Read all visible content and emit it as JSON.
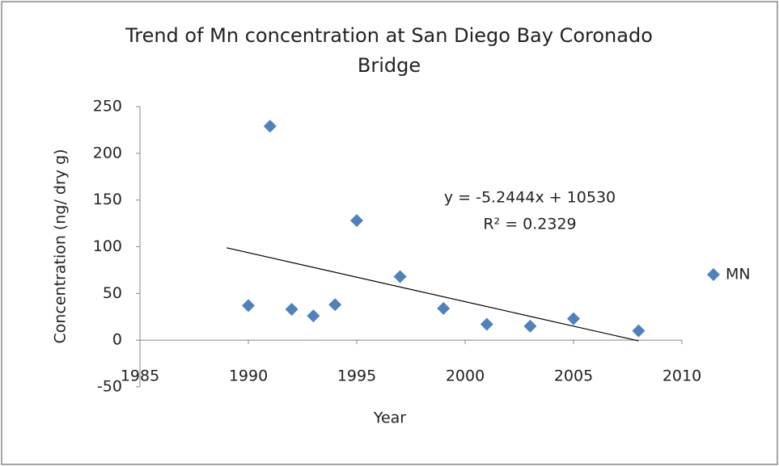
{
  "chart_data": {
    "type": "scatter",
    "title": "Trend of Mn concentration at San Diego Bay Coronado Bridge",
    "x_label": "Year",
    "y_label": "Concentration (ng/ dry g)",
    "series": [
      {
        "name": "MN",
        "color": "#4f81bd",
        "x": [
          1990,
          1991,
          1992,
          1993,
          1994,
          1995,
          1997,
          1999,
          2001,
          2003,
          2005,
          2008
        ],
        "values": [
          37,
          229,
          33,
          26,
          38,
          128,
          68,
          34,
          17,
          15,
          23,
          10
        ]
      }
    ],
    "trendline": {
      "equation": "y = -5.2444x + 10530",
      "r2_label": "R² = 0.2329",
      "slope": -5.2444,
      "intercept": 10530,
      "xrange": [
        1989,
        2008
      ]
    },
    "xlim": [
      1985,
      2010
    ],
    "xticks": [
      1985,
      1990,
      1995,
      2000,
      2005,
      2010
    ],
    "ylim": [
      -50,
      250
    ],
    "yticks": [
      -50,
      0,
      50,
      100,
      150,
      200,
      250
    ],
    "legend": "right"
  }
}
